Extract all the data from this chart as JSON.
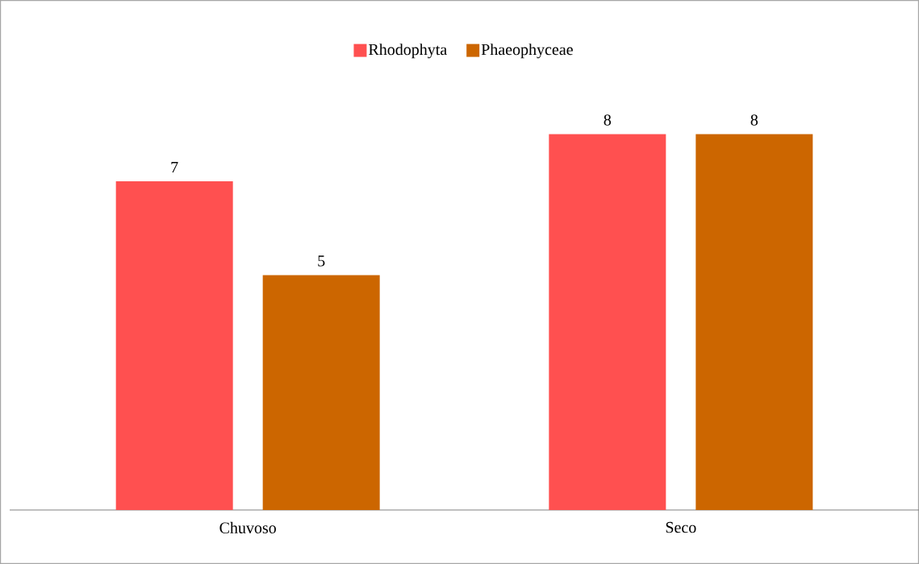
{
  "chart_data": {
    "type": "bar",
    "categories": [
      "Chuvoso",
      "Seco"
    ],
    "series": [
      {
        "name": "Rhodophyta",
        "color": "#ff5050",
        "values": [
          7,
          8
        ]
      },
      {
        "name": "Phaeophyceae",
        "color": "#cc6600",
        "values": [
          5,
          8
        ]
      }
    ],
    "data_labels": true,
    "legend": "top"
  }
}
